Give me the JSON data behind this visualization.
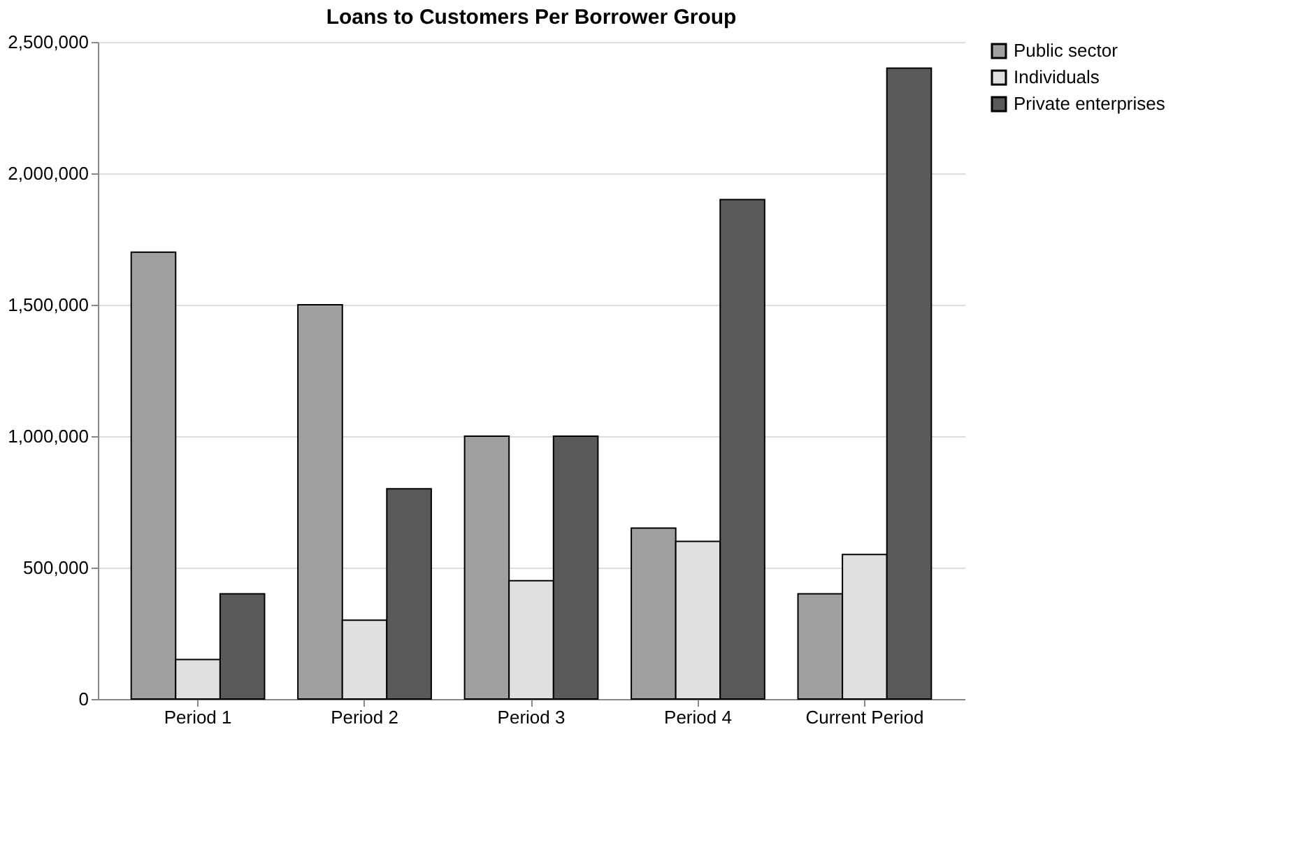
{
  "chart_data": {
    "type": "bar",
    "title": "Loans to Customers Per Borrower Group",
    "categories": [
      "Period 1",
      "Period 2",
      "Period 3",
      "Period 4",
      "Current Period"
    ],
    "series": [
      {
        "name": "Public sector",
        "color": "#a0a0a0",
        "values": [
          1700000,
          1500000,
          1000000,
          650000,
          400000
        ]
      },
      {
        "name": "Individuals",
        "color": "#e0e0e0",
        "values": [
          150000,
          300000,
          450000,
          600000,
          550000
        ]
      },
      {
        "name": "Private enterprises",
        "color": "#5a5a5a",
        "values": [
          400000,
          800000,
          1000000,
          1900000,
          2400000
        ]
      }
    ],
    "ylim": [
      0,
      2500000
    ],
    "yticks": [
      0,
      {
        "value": 500000,
        "label": "500,000"
      },
      {
        "value": 1000000,
        "label": "1,000,000"
      },
      {
        "value": 1500000,
        "label": "1,500,000"
      },
      {
        "value": 2000000,
        "label": "2,000,000"
      },
      {
        "value": 2500000,
        "label": "2,500,000"
      }
    ],
    "grid": "y",
    "legend": "right"
  }
}
